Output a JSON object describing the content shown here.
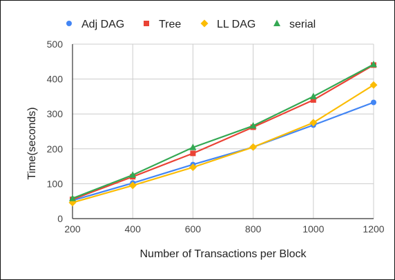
{
  "chart_data": {
    "type": "line",
    "title": "",
    "xlabel": "Number of Transactions per Block",
    "ylabel": "Time(seconds)",
    "x": [
      200,
      400,
      600,
      800,
      1000,
      1200
    ],
    "xlim": [
      200,
      1200
    ],
    "ylim": [
      0,
      500
    ],
    "x_ticks": [
      "200",
      "400",
      "600",
      "800",
      "1000",
      "1200"
    ],
    "y_ticks": [
      "0",
      "100",
      "200",
      "300",
      "400",
      "500"
    ],
    "grid": true,
    "legend_position": "top",
    "series": [
      {
        "name": "Adj DAG",
        "color": "#4285f4",
        "marker": "circle",
        "values": [
          52,
          102,
          155,
          205,
          268,
          333
        ]
      },
      {
        "name": "Tree",
        "color": "#ea4335",
        "marker": "square",
        "values": [
          55,
          120,
          187,
          262,
          340,
          440
        ]
      },
      {
        "name": "LL DAG",
        "color": "#fbbc04",
        "marker": "diamond",
        "values": [
          46,
          95,
          147,
          205,
          275,
          383
        ]
      },
      {
        "name": "serial",
        "color": "#34a853",
        "marker": "triangle",
        "values": [
          58,
          125,
          204,
          266,
          350,
          442
        ]
      }
    ]
  }
}
